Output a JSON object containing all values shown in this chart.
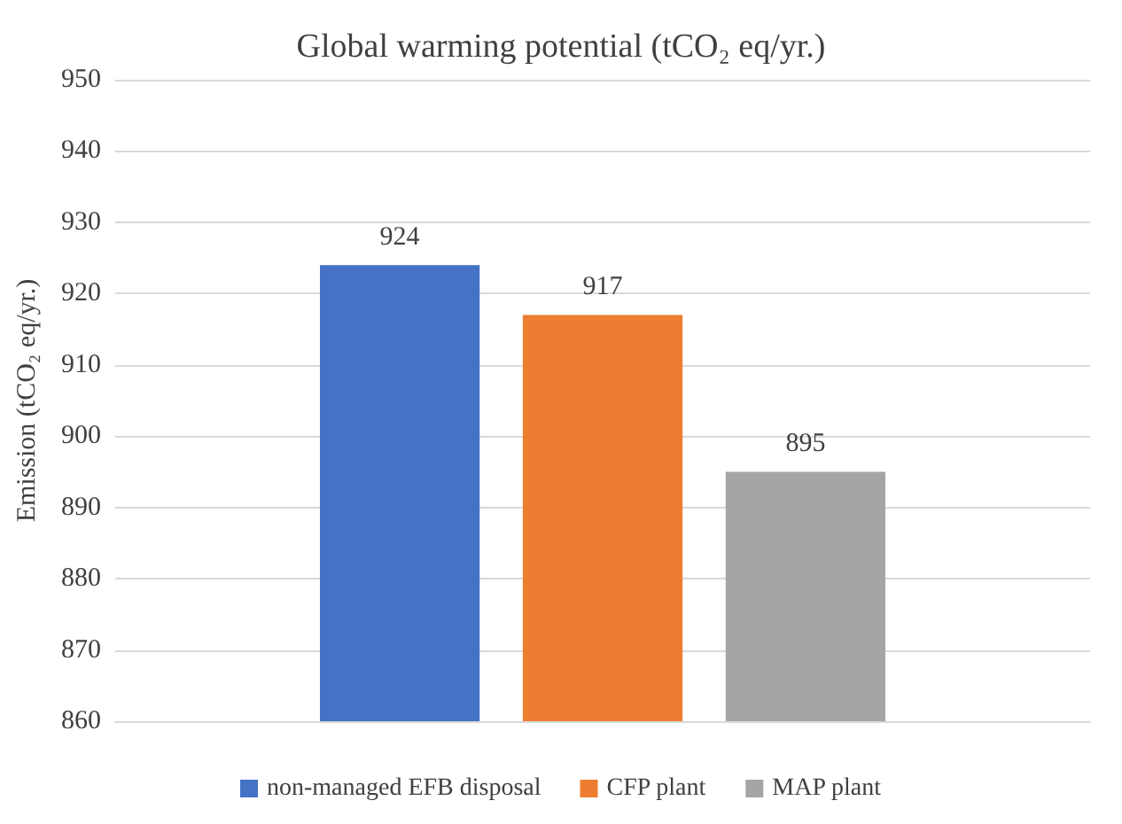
{
  "chart_data": {
    "type": "bar",
    "title": "Global warming potential (tCO₂ eq/yr.)",
    "ylabel": "Emission (tCO₂ eq/yr.)",
    "categories": [
      null
    ],
    "series": [
      {
        "name": "non-managed EFB disposal",
        "color": "#4472c4",
        "values": [
          924
        ]
      },
      {
        "name": "CFP plant",
        "color": "#ed7d31",
        "values": [
          917
        ]
      },
      {
        "name": "MAP plant",
        "color": "#a5a5a5",
        "values": [
          895
        ]
      }
    ],
    "ylim": [
      860,
      950
    ],
    "yticks": [
      860,
      870,
      880,
      890,
      900,
      910,
      920,
      930,
      940,
      950
    ],
    "grid": "y",
    "legend": "bottom",
    "data_labels": true
  }
}
